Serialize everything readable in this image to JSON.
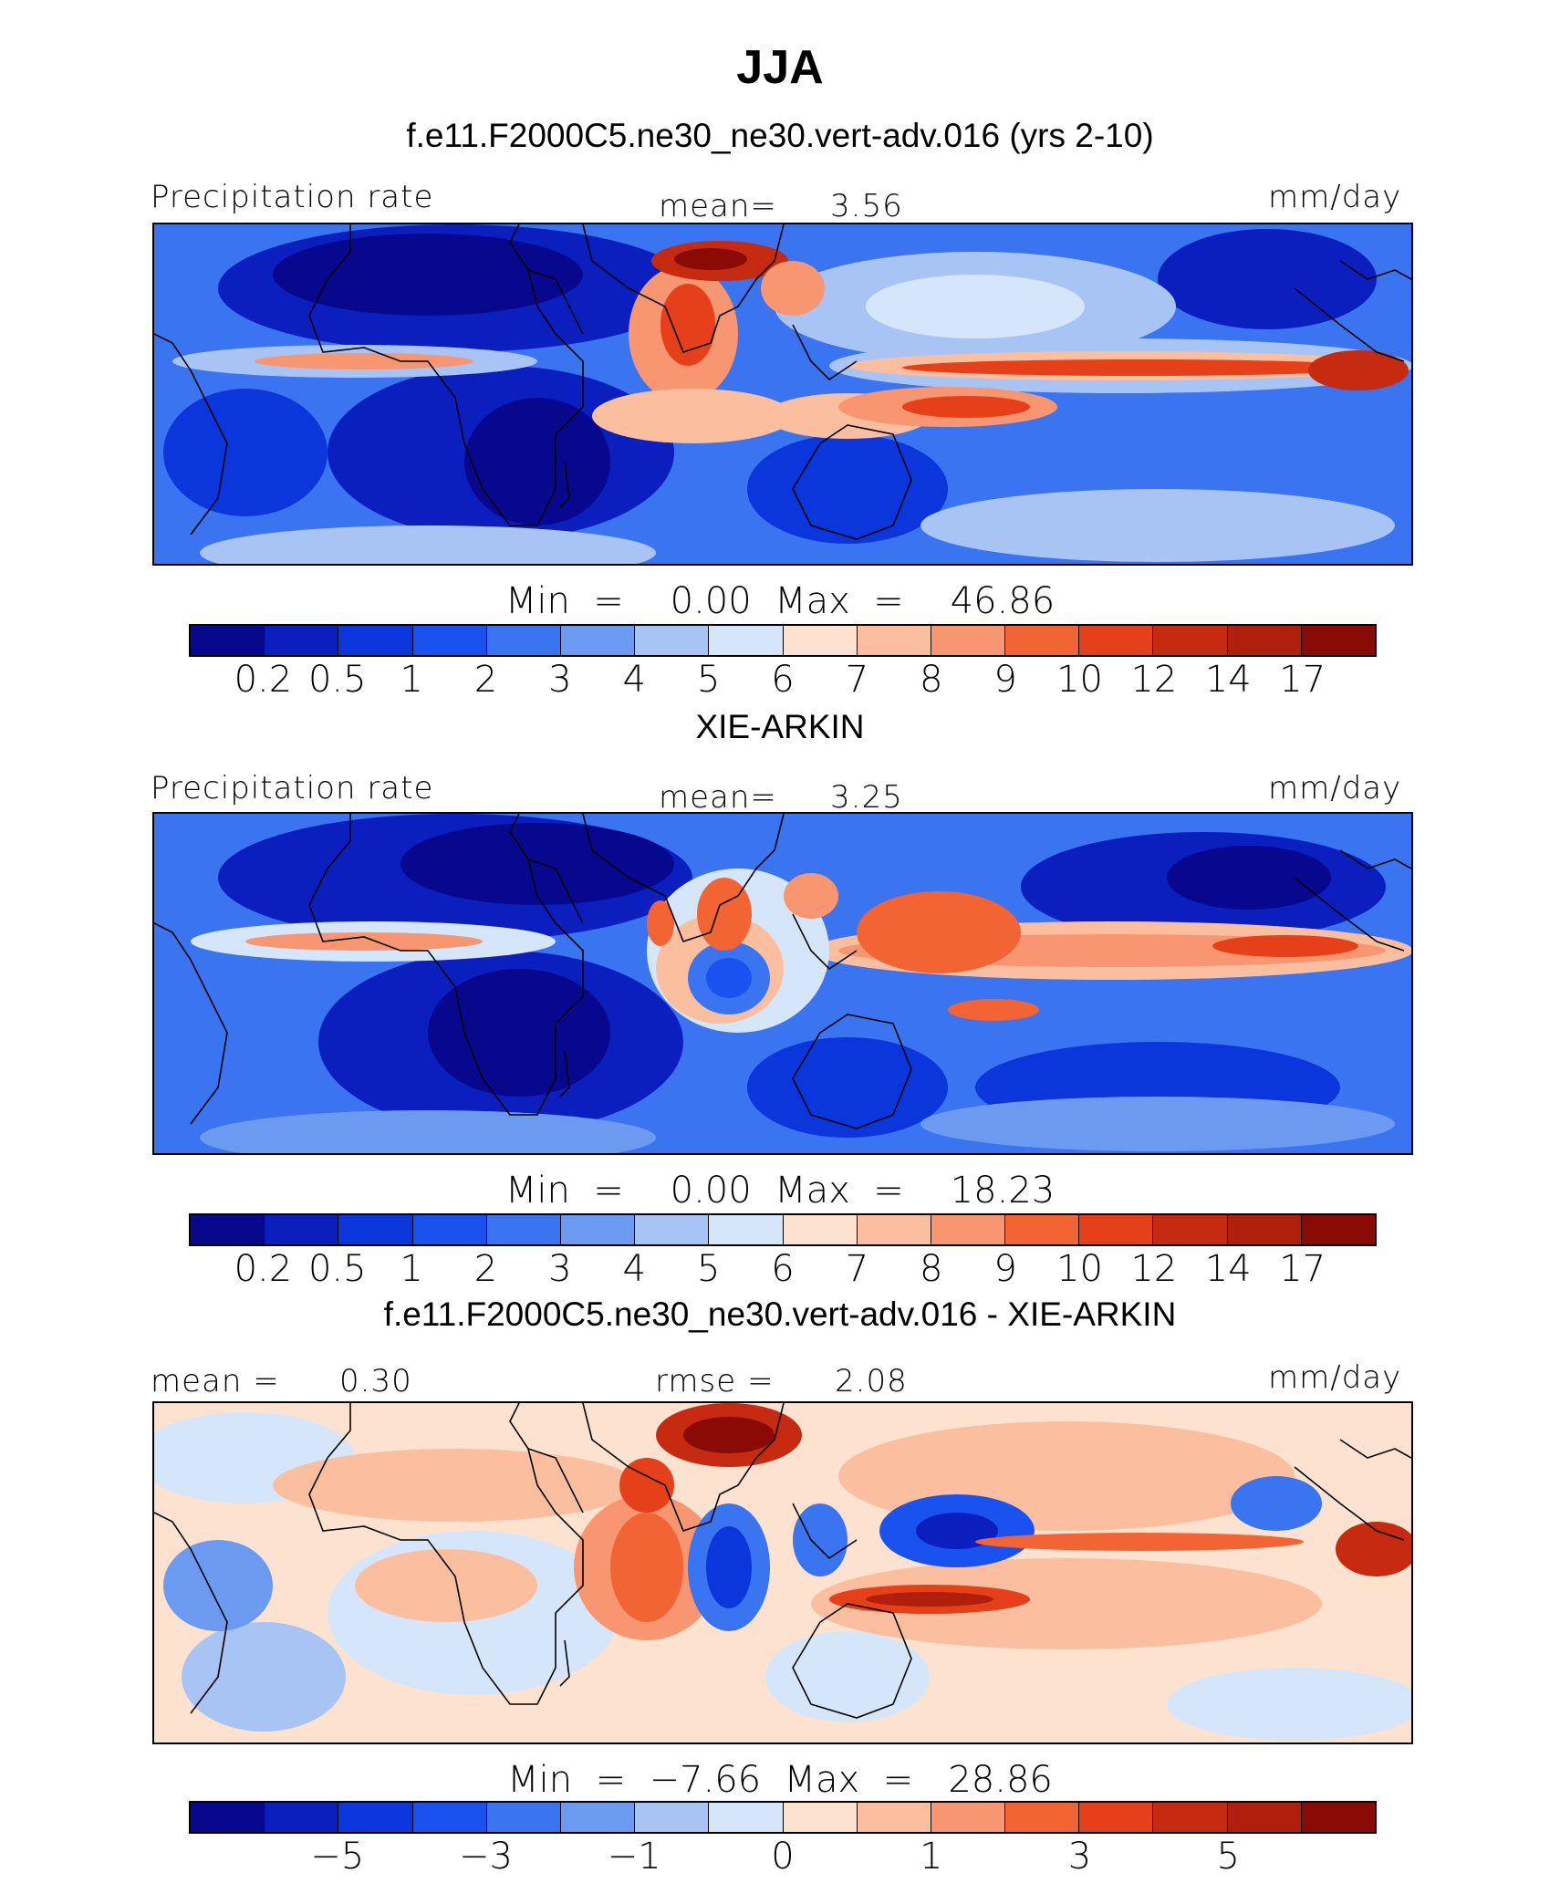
{
  "title": "JJA",
  "chart_data": [
    {
      "type": "heatmap",
      "title": "f.e11.F2000C5.ne30_ne30.vert-adv.016 (yrs 2-10)",
      "left_label": "Precipitation rate",
      "center_label": "mean=",
      "center_value": "3.56",
      "units": "mm/day",
      "min_label": "Min  =",
      "min_value": "0.00",
      "max_label": "Max  =",
      "max_value": "46.86",
      "colorbar_levels": [
        "0.2",
        "0.5",
        "1",
        "2",
        "3",
        "4",
        "5",
        "6",
        "7",
        "8",
        "9",
        "10",
        "12",
        "14",
        "17"
      ]
    },
    {
      "type": "heatmap",
      "title": "XIE-ARKIN",
      "left_label": "Precipitation rate",
      "center_label": "mean=",
      "center_value": "3.25",
      "units": "mm/day",
      "min_label": "Min  =",
      "min_value": "0.00",
      "max_label": "Max  =",
      "max_value": "18.23",
      "colorbar_levels": [
        "0.2",
        "0.5",
        "1",
        "2",
        "3",
        "4",
        "5",
        "6",
        "7",
        "8",
        "9",
        "10",
        "12",
        "14",
        "17"
      ]
    },
    {
      "type": "heatmap",
      "title": "f.e11.F2000C5.ne30_ne30.vert-adv.016 - XIE-ARKIN",
      "left_label": "mean =",
      "left_value": "0.30",
      "center_label": "rmse =",
      "center_value": "2.08",
      "units": "mm/day",
      "min_label": "Min  =",
      "min_value": "−7.66",
      "max_label": "Max  =",
      "max_value": "28.86",
      "colorbar_levels": [
        "−5",
        "−3",
        "−1",
        "0",
        "1",
        "3",
        "5"
      ]
    }
  ],
  "colors": {
    "precip_scale": [
      "#08088f",
      "#0b1fbf",
      "#0a36dc",
      "#1a52f0",
      "#3a74f0",
      "#6b9af0",
      "#a8c4f5",
      "#d6e6fa",
      "#fde3cf",
      "#fbbfa0",
      "#f79670",
      "#f36434",
      "#e6401a",
      "#c62a10",
      "#b01e0c",
      "#8a0a06"
    ],
    "diff_scale": [
      "#08088f",
      "#0b1fbf",
      "#0a36dc",
      "#1a52f0",
      "#3a74f0",
      "#6b9af0",
      "#a8c4f5",
      "#d6e6fa",
      "#fde3cf",
      "#fbbfa0",
      "#f79670",
      "#f36434",
      "#e6401a",
      "#c62a10",
      "#b01e0c",
      "#8a0a06"
    ]
  }
}
